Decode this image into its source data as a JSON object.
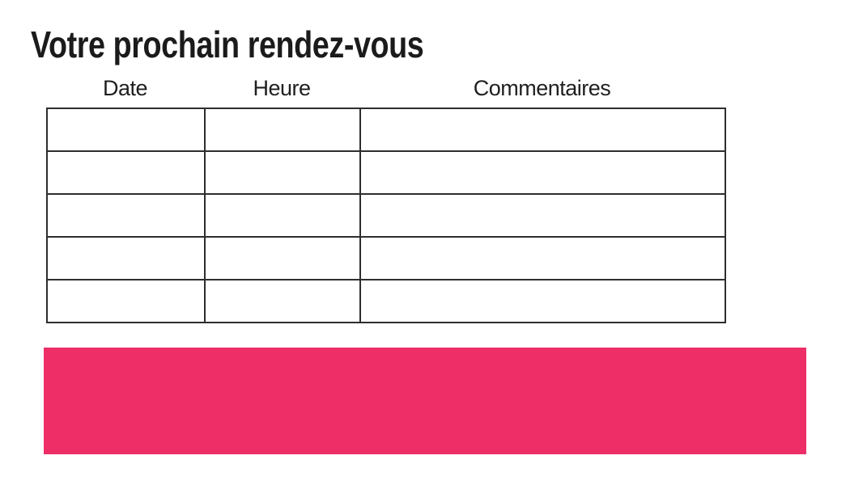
{
  "page": {
    "title": "Votre prochain rendez-vous"
  },
  "appointments_table": {
    "headers": [
      "Date",
      "Heure",
      "Commentaires"
    ],
    "rows": [
      [
        "",
        "",
        ""
      ],
      [
        "",
        "",
        ""
      ],
      [
        "",
        "",
        ""
      ],
      [
        "",
        "",
        ""
      ],
      [
        "",
        "",
        ""
      ]
    ]
  },
  "banner": {
    "color": "#ED2E67",
    "text": ""
  }
}
